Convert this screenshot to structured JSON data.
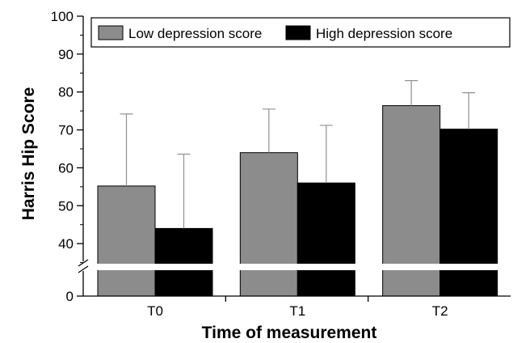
{
  "chart_data": {
    "type": "bar",
    "xlabel": "Time of measurement",
    "ylabel": "Harris Hip Score",
    "categories": [
      "T0",
      "T1",
      "T2"
    ],
    "series": [
      {
        "name": "Low depression score",
        "values": [
          55.2,
          64.0,
          76.4
        ],
        "errors": [
          19.0,
          11.5,
          6.6
        ],
        "color": "#8c8c8c"
      },
      {
        "name": "High depression score",
        "values": [
          44.0,
          56.0,
          70.2
        ],
        "errors": [
          19.6,
          15.2,
          9.6
        ],
        "color": "#000000"
      }
    ],
    "yticks": [
      0,
      40,
      50,
      60,
      70,
      80,
      90,
      100
    ],
    "ylim": [
      0,
      100
    ],
    "axis_break": true,
    "legend_position": "top",
    "error_bars": "upper"
  }
}
